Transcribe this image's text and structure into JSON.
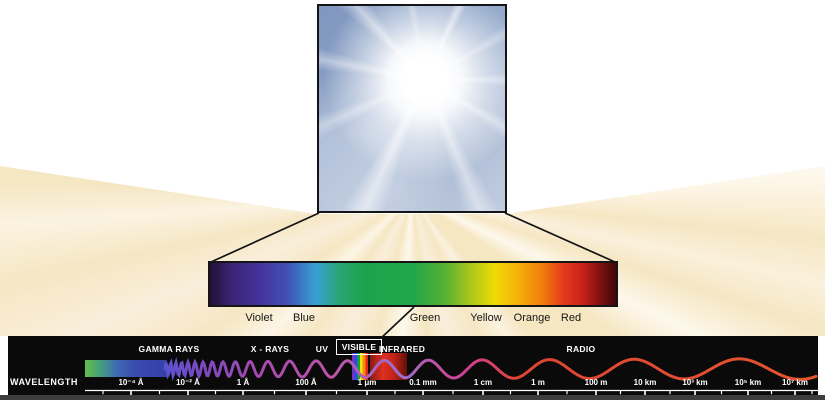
{
  "colors": {
    "ray_cream": "#f6e7c3",
    "panel_black": "#0a0a0a",
    "wave_gamma_blue": "#5a52cf",
    "wave_magenta": "#c24698",
    "wave_radio_red": "#e4562e",
    "axis_white": "#ffffff"
  },
  "sun_panel": {
    "icon": "sun-photo"
  },
  "visible_spectrum": {
    "labels": [
      "Violet",
      "Blue",
      "Green",
      "Yellow",
      "Orange",
      "Red"
    ]
  },
  "em_panel": {
    "wavelength_label": "WAVELENGTH",
    "bands": [
      "GAMMA RAYS",
      "X - RAYS",
      "UV",
      "VISIBLE",
      "INFRARED",
      "RADIO"
    ],
    "ticks": [
      "10⁻⁴ Å",
      "10⁻² Å",
      "1 Å",
      "100 Å",
      "1 μm",
      "0.1 mm",
      "1 cm",
      "1 m",
      "100 m",
      "10 km",
      "10³ km",
      "10⁵ km",
      "10⁷ km"
    ]
  }
}
